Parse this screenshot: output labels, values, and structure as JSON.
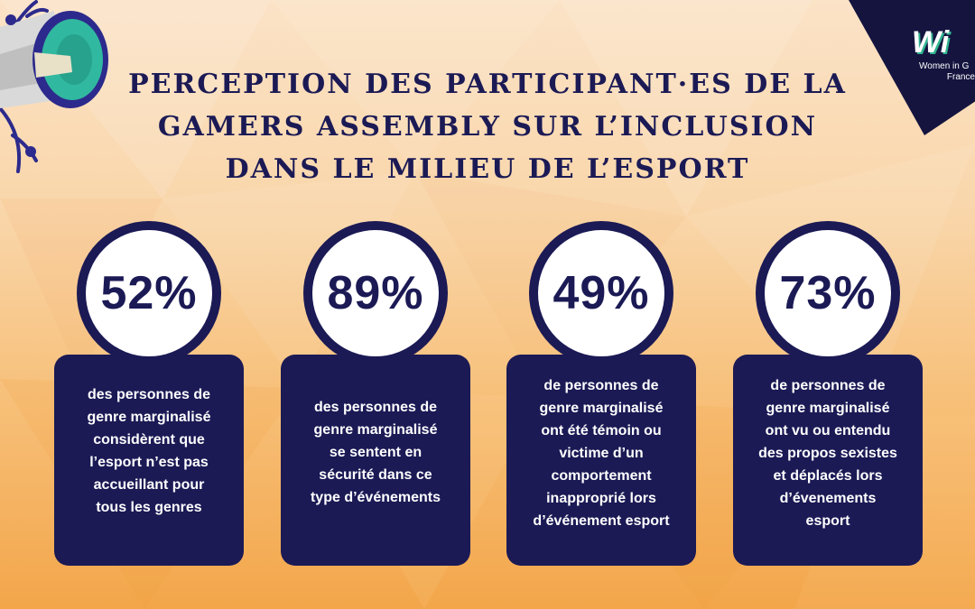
{
  "title": "Perception des participant·es de la Gamers Assembly sur l’inclusion dans le milieu de l’esport",
  "logo": {
    "mark": "Wi",
    "subtitle_line1": "Women in G",
    "subtitle_line2": "France"
  },
  "colors": {
    "navy": "#1b1a55",
    "teal": "#2fb38f",
    "white": "#ffffff"
  },
  "stats": [
    {
      "percent": "52%",
      "lines": [
        "des personnes de",
        "genre marginalisé",
        "considèrent que",
        "l’esport n’est pas",
        "accueillant pour",
        "tous les genres"
      ]
    },
    {
      "percent": "89%",
      "lines": [
        "des personnes de",
        "genre marginalisé",
        "se sentent en",
        "sécurité dans ce",
        "type d’événements"
      ]
    },
    {
      "percent": "49%",
      "lines": [
        "de personnes de",
        "genre marginalisé",
        "ont été témoin ou",
        "victime d’un",
        "comportement",
        "inapproprié lors",
        "d’événement esport"
      ]
    },
    {
      "percent": "73%",
      "lines": [
        "de personnes de",
        "genre marginalisé",
        "ont vu ou entendu",
        "des propos sexistes",
        "et déplacés lors",
        "d’évenements",
        "esport"
      ]
    }
  ],
  "icons": [
    "megaphone-icon",
    "wigf-logo-icon"
  ]
}
